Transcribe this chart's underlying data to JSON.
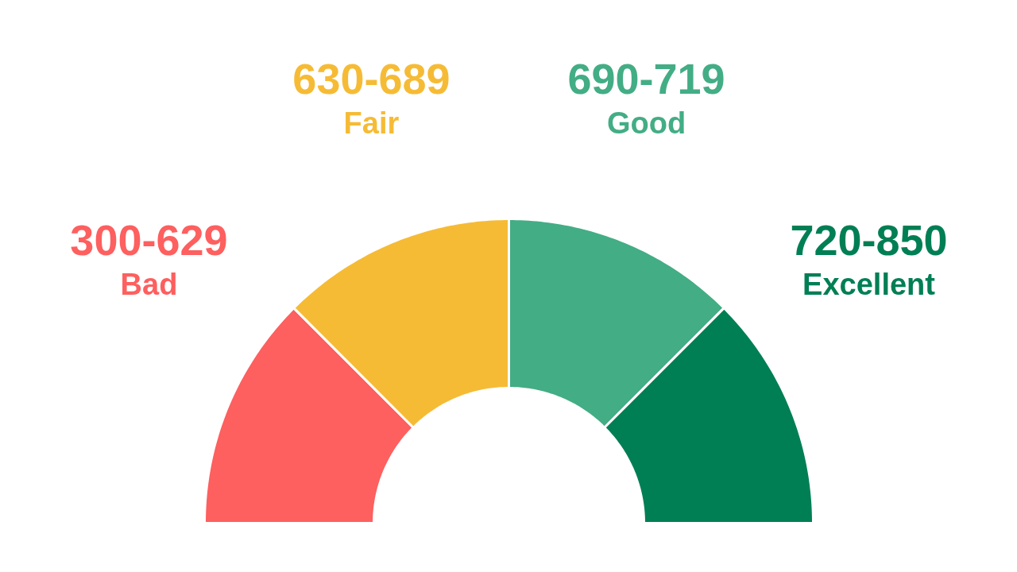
{
  "chart_data": {
    "type": "donut",
    "categories": [
      "Bad",
      "Fair",
      "Good",
      "Excellent"
    ],
    "values": [
      25,
      25,
      25,
      25
    ],
    "colors": [
      "#fe5f5f",
      "#f6bb35",
      "#43ad85",
      "#007f54"
    ],
    "value_labels": [
      "300-629",
      "630-689",
      "690-719",
      "720-850"
    ]
  }
}
